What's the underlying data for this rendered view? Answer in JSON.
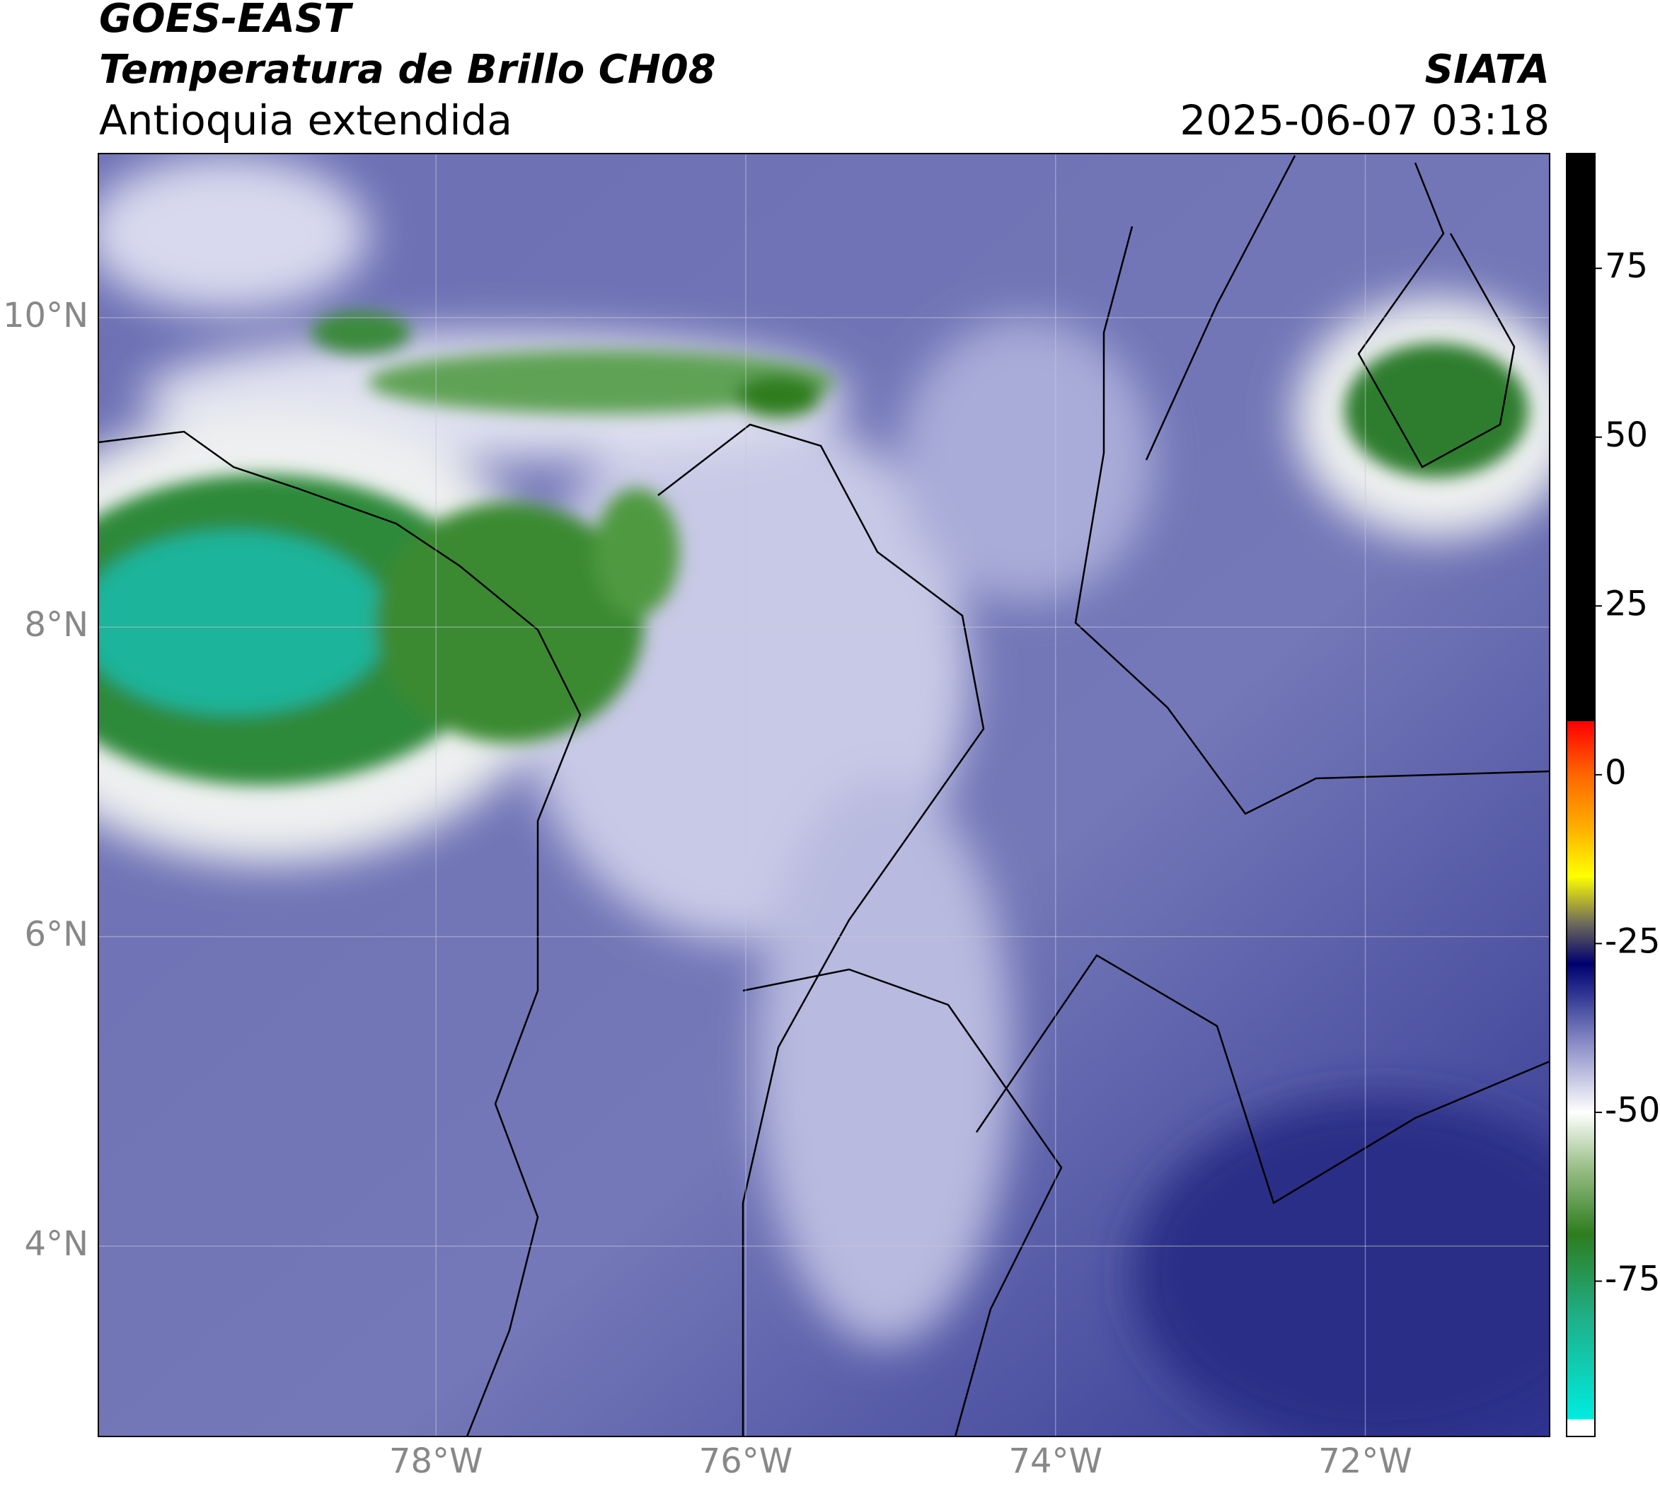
{
  "header": {
    "title": "GOES-EAST",
    "subtitle": "Temperatura de Brillo CH08",
    "region": "Antioquia extendida",
    "source": "SIATA",
    "timestamp": "2025-06-07 03:18"
  },
  "map": {
    "lon_range": [
      -80.18,
      -70.81
    ],
    "lat_range": [
      2.77,
      11.06
    ],
    "grid": true,
    "lon_ticks": [
      {
        "value": -78,
        "label": "78°W"
      },
      {
        "value": -76,
        "label": "76°W"
      },
      {
        "value": -74,
        "label": "74°W"
      },
      {
        "value": -72,
        "label": "72°W"
      }
    ],
    "lat_ticks": [
      {
        "value": 10,
        "label": "10°N"
      },
      {
        "value": 8,
        "label": "8°N"
      },
      {
        "value": 6,
        "label": "6°N"
      },
      {
        "value": 4,
        "label": "4°N"
      }
    ]
  },
  "colorbar": {
    "range": [
      -98,
      92
    ],
    "ticks": [
      75,
      50,
      25,
      0,
      -25,
      -50,
      -75
    ],
    "stops": [
      {
        "value": -98,
        "color": "#ffffff"
      },
      {
        "value": -95.5,
        "color": "#ffffff"
      },
      {
        "value": -95.4,
        "color": "#00ece0"
      },
      {
        "value": -80,
        "color": "#1fae86"
      },
      {
        "value": -68,
        "color": "#2e7d1e"
      },
      {
        "value": -58,
        "color": "#9cc08a"
      },
      {
        "value": -50,
        "color": "#ffffff"
      },
      {
        "value": -40,
        "color": "#8c8fc8"
      },
      {
        "value": -32,
        "color": "#2a2f8f"
      },
      {
        "value": -28,
        "color": "#00006e"
      },
      {
        "value": -22,
        "color": "#6e6a5a"
      },
      {
        "value": -15,
        "color": "#ffff00"
      },
      {
        "value": -8,
        "color": "#ffb000"
      },
      {
        "value": 0,
        "color": "#ff6600"
      },
      {
        "value": 7.9,
        "color": "#ff0000"
      },
      {
        "value": 8,
        "color": "#000000"
      },
      {
        "value": 92,
        "color": "#000000"
      }
    ]
  }
}
